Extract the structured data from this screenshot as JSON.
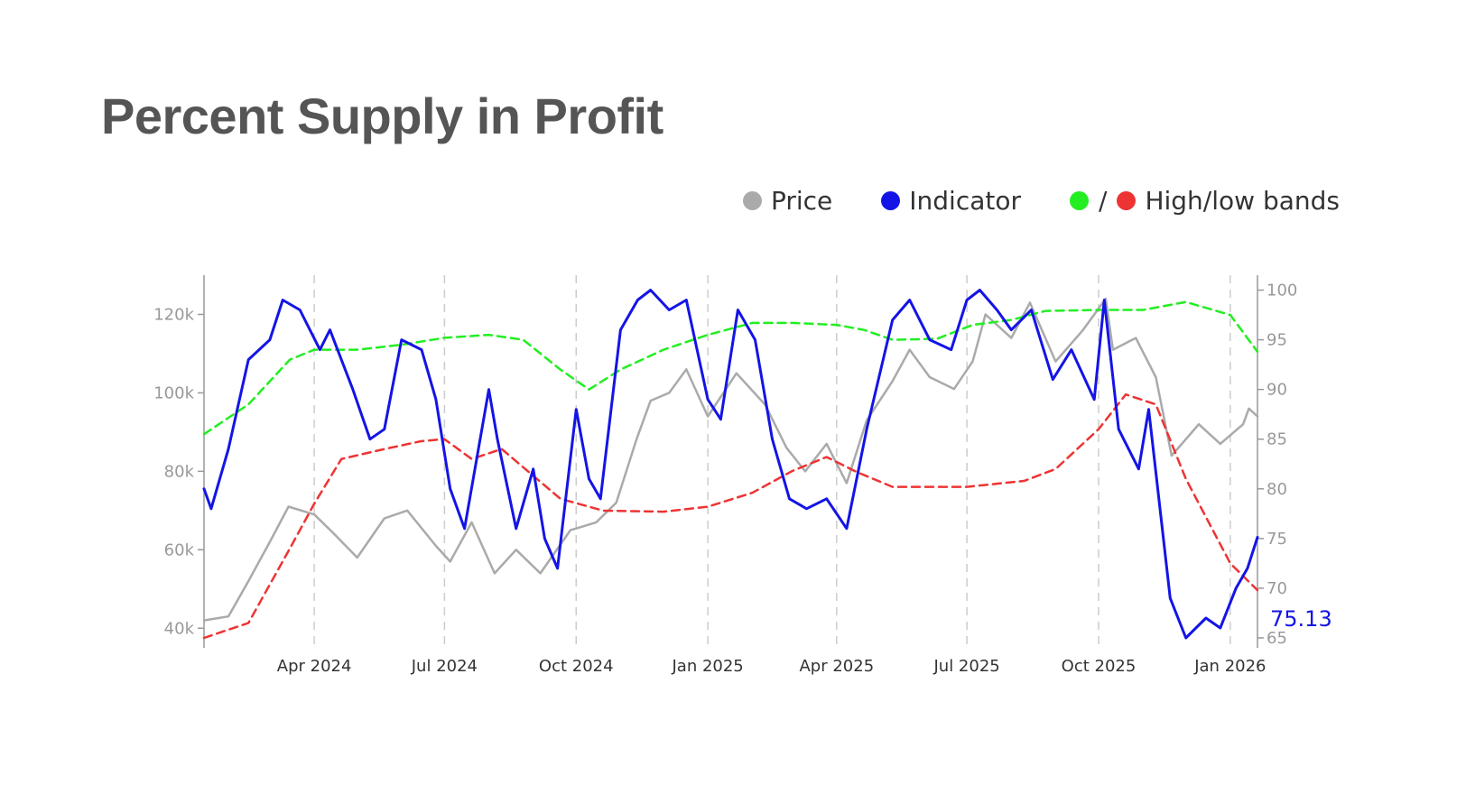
{
  "title": "Percent Supply in Profit",
  "legend": {
    "price": "Price",
    "indicator": "Indicator",
    "slash": "/",
    "bands": "High/low bands"
  },
  "colors": {
    "price": "#aaaaaa",
    "indicator": "#1414e6",
    "high_band": "#22ee22",
    "low_band": "#ee3333",
    "axis": "#999999",
    "text": "#333333"
  },
  "chart_data": {
    "type": "line",
    "x_unit": "date",
    "x_ticks": [
      "Apr 2024",
      "Jul 2024",
      "Oct 2024",
      "Jan 2025",
      "Apr 2025",
      "Jul 2025",
      "Oct 2025",
      "Jan 2026"
    ],
    "x_tick_dates": [
      "2024-04-01",
      "2024-07-01",
      "2024-10-01",
      "2025-01-01",
      "2025-04-01",
      "2025-07-01",
      "2025-10-01",
      "2026-01-01"
    ],
    "xlim": [
      "2024-01-15",
      "2026-01-20"
    ],
    "y_left": {
      "ticks": [
        "40k",
        "60k",
        "80k",
        "100k",
        "120k"
      ],
      "tick_values": [
        40000,
        60000,
        80000,
        100000,
        120000
      ],
      "range": [
        35000,
        130000
      ]
    },
    "y_right": {
      "ticks": [
        "65",
        "70",
        "75",
        "80",
        "85",
        "90",
        "95",
        "100"
      ],
      "tick_values": [
        65,
        70,
        75,
        80,
        85,
        90,
        95,
        100
      ],
      "range": [
        64,
        101.5
      ]
    },
    "vertical_grid": "dashed at x ticks",
    "latest_value_label": "75.13",
    "series": [
      {
        "name": "Price",
        "axis": "left",
        "style": "solid",
        "points": [
          [
            "2024-01-15",
            42000
          ],
          [
            "2024-02-01",
            43000
          ],
          [
            "2024-02-15",
            52000
          ],
          [
            "2024-03-01",
            62000
          ],
          [
            "2024-03-14",
            71000
          ],
          [
            "2024-04-01",
            69000
          ],
          [
            "2024-04-15",
            64000
          ],
          [
            "2024-05-01",
            58000
          ],
          [
            "2024-05-20",
            68000
          ],
          [
            "2024-06-05",
            70000
          ],
          [
            "2024-06-25",
            61000
          ],
          [
            "2024-07-05",
            57000
          ],
          [
            "2024-07-20",
            67000
          ],
          [
            "2024-08-05",
            54000
          ],
          [
            "2024-08-20",
            60000
          ],
          [
            "2024-09-06",
            54000
          ],
          [
            "2024-09-27",
            65000
          ],
          [
            "2024-10-15",
            67000
          ],
          [
            "2024-10-29",
            72000
          ],
          [
            "2024-11-12",
            88000
          ],
          [
            "2024-11-22",
            98000
          ],
          [
            "2024-12-05",
            100000
          ],
          [
            "2024-12-17",
            106000
          ],
          [
            "2025-01-01",
            94000
          ],
          [
            "2025-01-21",
            105000
          ],
          [
            "2025-02-10",
            97000
          ],
          [
            "2025-02-25",
            86000
          ],
          [
            "2025-03-10",
            80000
          ],
          [
            "2025-03-25",
            87000
          ],
          [
            "2025-04-08",
            77000
          ],
          [
            "2025-04-22",
            93000
          ],
          [
            "2025-05-10",
            103000
          ],
          [
            "2025-05-22",
            111000
          ],
          [
            "2025-06-05",
            104000
          ],
          [
            "2025-06-22",
            101000
          ],
          [
            "2025-07-05",
            108000
          ],
          [
            "2025-07-14",
            120000
          ],
          [
            "2025-08-01",
            114000
          ],
          [
            "2025-08-14",
            123000
          ],
          [
            "2025-09-01",
            108000
          ],
          [
            "2025-09-20",
            116000
          ],
          [
            "2025-10-06",
            124000
          ],
          [
            "2025-10-11",
            111000
          ],
          [
            "2025-10-27",
            114000
          ],
          [
            "2025-11-10",
            104000
          ],
          [
            "2025-11-21",
            84000
          ],
          [
            "2025-12-10",
            92000
          ],
          [
            "2025-12-25",
            87000
          ],
          [
            "2026-01-10",
            92000
          ],
          [
            "2026-01-14",
            96000
          ],
          [
            "2026-01-20",
            94000
          ]
        ]
      },
      {
        "name": "Indicator",
        "axis": "right",
        "style": "solid",
        "points": [
          [
            "2024-01-15",
            80
          ],
          [
            "2024-01-20",
            78
          ],
          [
            "2024-02-01",
            84
          ],
          [
            "2024-02-15",
            93
          ],
          [
            "2024-03-01",
            95
          ],
          [
            "2024-03-10",
            99
          ],
          [
            "2024-03-22",
            98
          ],
          [
            "2024-04-05",
            94
          ],
          [
            "2024-04-12",
            96
          ],
          [
            "2024-04-28",
            90
          ],
          [
            "2024-05-10",
            85
          ],
          [
            "2024-05-20",
            86
          ],
          [
            "2024-06-01",
            95
          ],
          [
            "2024-06-15",
            94
          ],
          [
            "2024-06-25",
            89
          ],
          [
            "2024-07-05",
            80
          ],
          [
            "2024-07-15",
            76
          ],
          [
            "2024-08-01",
            90
          ],
          [
            "2024-08-07",
            85
          ],
          [
            "2024-08-20",
            76
          ],
          [
            "2024-09-01",
            82
          ],
          [
            "2024-09-09",
            75
          ],
          [
            "2024-09-18",
            72
          ],
          [
            "2024-10-01",
            88
          ],
          [
            "2024-10-10",
            81
          ],
          [
            "2024-10-18",
            79
          ],
          [
            "2024-11-01",
            96
          ],
          [
            "2024-11-13",
            99
          ],
          [
            "2024-11-22",
            100
          ],
          [
            "2024-12-05",
            98
          ],
          [
            "2024-12-17",
            99
          ],
          [
            "2025-01-01",
            89
          ],
          [
            "2025-01-10",
            87
          ],
          [
            "2025-01-22",
            98
          ],
          [
            "2025-02-03",
            95
          ],
          [
            "2025-02-15",
            85
          ],
          [
            "2025-02-27",
            79
          ],
          [
            "2025-03-11",
            78
          ],
          [
            "2025-03-25",
            79
          ],
          [
            "2025-04-08",
            76
          ],
          [
            "2025-04-22",
            86
          ],
          [
            "2025-05-10",
            97
          ],
          [
            "2025-05-22",
            99
          ],
          [
            "2025-06-05",
            95
          ],
          [
            "2025-06-20",
            94
          ],
          [
            "2025-07-01",
            99
          ],
          [
            "2025-07-10",
            100
          ],
          [
            "2025-07-22",
            98
          ],
          [
            "2025-08-01",
            96
          ],
          [
            "2025-08-15",
            98
          ],
          [
            "2025-08-30",
            91
          ],
          [
            "2025-09-12",
            94
          ],
          [
            "2025-09-28",
            89
          ],
          [
            "2025-10-05",
            99
          ],
          [
            "2025-10-15",
            86
          ],
          [
            "2025-10-29",
            82
          ],
          [
            "2025-11-05",
            88
          ],
          [
            "2025-11-20",
            69
          ],
          [
            "2025-12-01",
            65
          ],
          [
            "2025-12-15",
            67
          ],
          [
            "2025-12-25",
            66
          ],
          [
            "2026-01-05",
            70
          ],
          [
            "2026-01-13",
            72
          ],
          [
            "2026-01-20",
            75.13
          ]
        ]
      },
      {
        "name": "High band",
        "axis": "right",
        "style": "dashed",
        "points": [
          [
            "2024-01-15",
            85.5
          ],
          [
            "2024-02-15",
            88.5
          ],
          [
            "2024-03-15",
            93
          ],
          [
            "2024-04-01",
            94
          ],
          [
            "2024-05-01",
            94
          ],
          [
            "2024-06-01",
            94.5
          ],
          [
            "2024-07-01",
            95.2
          ],
          [
            "2024-08-01",
            95.5
          ],
          [
            "2024-08-25",
            95
          ],
          [
            "2024-09-20",
            92
          ],
          [
            "2024-10-10",
            90
          ],
          [
            "2024-11-01",
            92
          ],
          [
            "2024-12-01",
            94
          ],
          [
            "2025-01-01",
            95.5
          ],
          [
            "2025-02-01",
            96.7
          ],
          [
            "2025-03-01",
            96.7
          ],
          [
            "2025-04-01",
            96.5
          ],
          [
            "2025-04-20",
            96
          ],
          [
            "2025-05-10",
            95
          ],
          [
            "2025-06-10",
            95.1
          ],
          [
            "2025-07-05",
            96.5
          ],
          [
            "2025-08-01",
            97
          ],
          [
            "2025-08-25",
            97.9
          ],
          [
            "2025-10-01",
            98
          ],
          [
            "2025-11-01",
            98
          ],
          [
            "2025-12-01",
            98.8
          ],
          [
            "2026-01-01",
            97.5
          ],
          [
            "2026-01-20",
            93.8
          ]
        ]
      },
      {
        "name": "Low band",
        "axis": "right",
        "style": "dashed",
        "points": [
          [
            "2024-01-15",
            65
          ],
          [
            "2024-02-15",
            66.5
          ],
          [
            "2024-03-15",
            74
          ],
          [
            "2024-04-01",
            78.5
          ],
          [
            "2024-04-20",
            83
          ],
          [
            "2024-05-20",
            84
          ],
          [
            "2024-06-15",
            84.8
          ],
          [
            "2024-07-01",
            85
          ],
          [
            "2024-07-20",
            83
          ],
          [
            "2024-08-10",
            84
          ],
          [
            "2024-09-20",
            79
          ],
          [
            "2024-10-20",
            77.8
          ],
          [
            "2024-12-01",
            77.7
          ],
          [
            "2025-01-01",
            78.2
          ],
          [
            "2025-02-01",
            79.6
          ],
          [
            "2025-03-01",
            81.8
          ],
          [
            "2025-03-25",
            83.2
          ],
          [
            "2025-04-15",
            81.7
          ],
          [
            "2025-05-10",
            80.2
          ],
          [
            "2025-07-01",
            80.2
          ],
          [
            "2025-08-10",
            80.8
          ],
          [
            "2025-09-01",
            82
          ],
          [
            "2025-10-01",
            86
          ],
          [
            "2025-10-20",
            89.5
          ],
          [
            "2025-11-10",
            88.5
          ],
          [
            "2025-12-01",
            81
          ],
          [
            "2026-01-01",
            72.5
          ],
          [
            "2026-01-20",
            69.8
          ]
        ]
      }
    ]
  }
}
